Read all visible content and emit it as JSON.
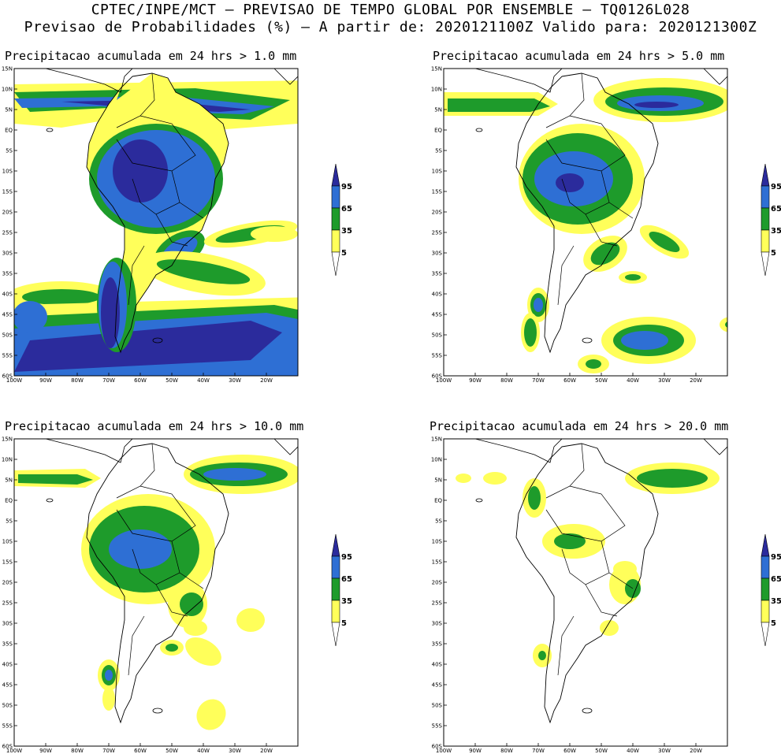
{
  "header": {
    "line1": "CPTEC/INPE/MCT — PREVISAO DE TEMPO GLOBAL POR ENSEMBLE — TQ0126L028",
    "line2": "Previsao de Probabilidades (%) —  A partir de: 2020121100Z  Valido para: 2020121300Z"
  },
  "axes": {
    "lat_labels": [
      "15N",
      "10N",
      "5N",
      "EQ",
      "5S",
      "10S",
      "15S",
      "20S",
      "25S",
      "30S",
      "35S",
      "40S",
      "45S",
      "50S",
      "55S",
      "60S"
    ],
    "lon_labels": [
      "100W",
      "90W",
      "80W",
      "70W",
      "60W",
      "50W",
      "40W",
      "30W",
      "20W"
    ]
  },
  "legend": {
    "levels": [
      "95",
      "65",
      "35",
      "5"
    ],
    "colors": {
      "c95": "#2b2b9c",
      "c65": "#2e6fd4",
      "c35": "#1e9b2b",
      "c5": "#ffff5a",
      "none": "#ffffff"
    }
  },
  "panels": [
    {
      "title": "Precipitacao acumulada em 24 hrs > 1.0 mm"
    },
    {
      "title": "Precipitacao acumulada em 24 hrs > 5.0 mm"
    },
    {
      "title": "Precipitacao acumulada em 24 hrs > 10.0 mm"
    },
    {
      "title": "Precipitacao acumulada em 24 hrs > 20.0 mm"
    }
  ]
}
